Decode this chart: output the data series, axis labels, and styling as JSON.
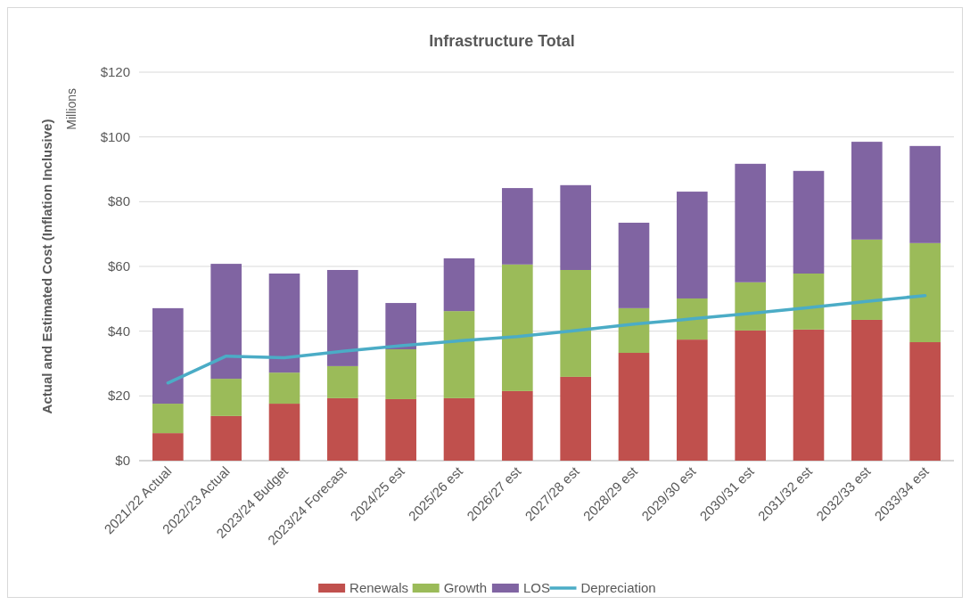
{
  "chart_data": {
    "type": "bar",
    "title": "Infrastructure Total",
    "ylabel": "Actual and Estimated Cost (Inflation Inclusive)",
    "annotations": [
      "Millions"
    ],
    "categories": [
      "2021/22 Actual",
      "2022/23 Actual",
      "2023/24 Budget",
      "2023/24 Forecast",
      "2024/25 est",
      "2025/26 est",
      "2026/27 est",
      "2027/28 est",
      "2028/29 est",
      "2029/30 est",
      "2030/31 est",
      "2031/32 est",
      "2032/33 est",
      "2033/34 est"
    ],
    "stacked": true,
    "series": [
      {
        "name": "Renewals",
        "color": "#c0504d",
        "values": [
          8.5,
          13.8,
          17.6,
          19.3,
          19.0,
          19.3,
          21.5,
          25.9,
          33.3,
          37.4,
          40.2,
          40.5,
          43.5,
          36.6
        ]
      },
      {
        "name": "Growth",
        "color": "#9bbb59",
        "values": [
          9.1,
          11.5,
          9.6,
          9.9,
          15.4,
          26.9,
          39.1,
          33.0,
          13.8,
          12.7,
          14.9,
          17.3,
          24.8,
          30.6
        ]
      },
      {
        "name": "LOS",
        "color": "#8064a2",
        "values": [
          29.5,
          35.5,
          30.6,
          29.7,
          14.3,
          16.3,
          23.6,
          26.2,
          26.4,
          33.0,
          36.6,
          31.7,
          30.2,
          30.0
        ]
      },
      {
        "name": "Depreciation",
        "type": "line",
        "color": "#4bacc6",
        "values": [
          24.0,
          32.3,
          31.8,
          33.8,
          35.5,
          37.0,
          38.3,
          40.2,
          42.2,
          43.8,
          45.5,
          47.3,
          49.2,
          51.0
        ]
      }
    ],
    "ylim": [
      0,
      120
    ],
    "yticks": [
      {
        "value": 0,
        "label": "$0"
      },
      {
        "value": 20,
        "label": "$20"
      },
      {
        "value": 40,
        "label": "$40"
      },
      {
        "value": 60,
        "label": "$60"
      },
      {
        "value": 80,
        "label": "$80"
      },
      {
        "value": 100,
        "label": "$100"
      },
      {
        "value": 120,
        "label": "$120"
      }
    ],
    "grid": "y",
    "legend": "bottom",
    "marker": "none",
    "line_style": "solid"
  }
}
